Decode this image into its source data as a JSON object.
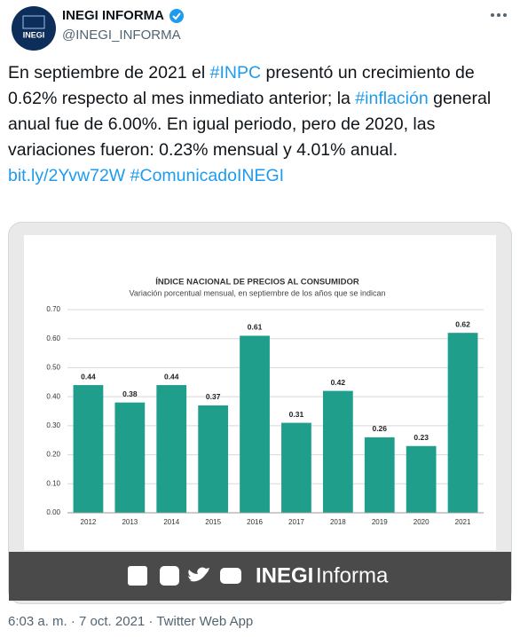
{
  "header": {
    "avatar": "INEGI",
    "name": "INEGI INFORMA",
    "handle": "@INEGI_INFORMA"
  },
  "body": [
    "En septiembre de 2021 el ",
    "#INPC",
    " presentó un crecimiento de 0.62% respecto al mes inmediato anterior; la ",
    "#inflación",
    " general anual fue de 6.00%. En igual periodo, pero de 2020, las variaciones fueron: 0.23% mensual y 4.01% anual. ",
    "bit.ly/2Yvw72W",
    " ",
    "#ComunicadoINEGI"
  ],
  "chart_data": {
    "type": "bar",
    "title": "ÍNDICE NACIONAL DE PRECIOS AL CONSUMIDOR",
    "subtitle": "Variación porcentual mensual, en septiembre de los años que se indican",
    "categories": [
      "2012",
      "2013",
      "2014",
      "2015",
      "2016",
      "2017",
      "2018",
      "2019",
      "2020",
      "2021"
    ],
    "values": [
      0.44,
      0.38,
      0.44,
      0.37,
      0.61,
      0.31,
      0.42,
      0.26,
      0.23,
      0.62
    ],
    "color": "#1f9e8c",
    "ylim": [
      0,
      0.7
    ],
    "yticks": [
      {
        "value": 0,
        "label": "0.00"
      },
      {
        "value": 0.1,
        "label": "0.10"
      },
      {
        "value": 0.2,
        "label": "0.20"
      },
      {
        "value": 0.3,
        "label": "0.30"
      },
      {
        "value": 0.4,
        "label": "0.40"
      },
      {
        "value": 0.5,
        "label": "0.50"
      },
      {
        "value": 0.6,
        "label": "0.60"
      },
      {
        "value": 0.7,
        "label": "0.70"
      }
    ],
    "grid": true
  },
  "image_footer": {
    "brand_bold": "INEGI",
    "brand": "Informa"
  },
  "footer": "6:03 a. m. · 7 oct. 2021 · Twitter Web App"
}
